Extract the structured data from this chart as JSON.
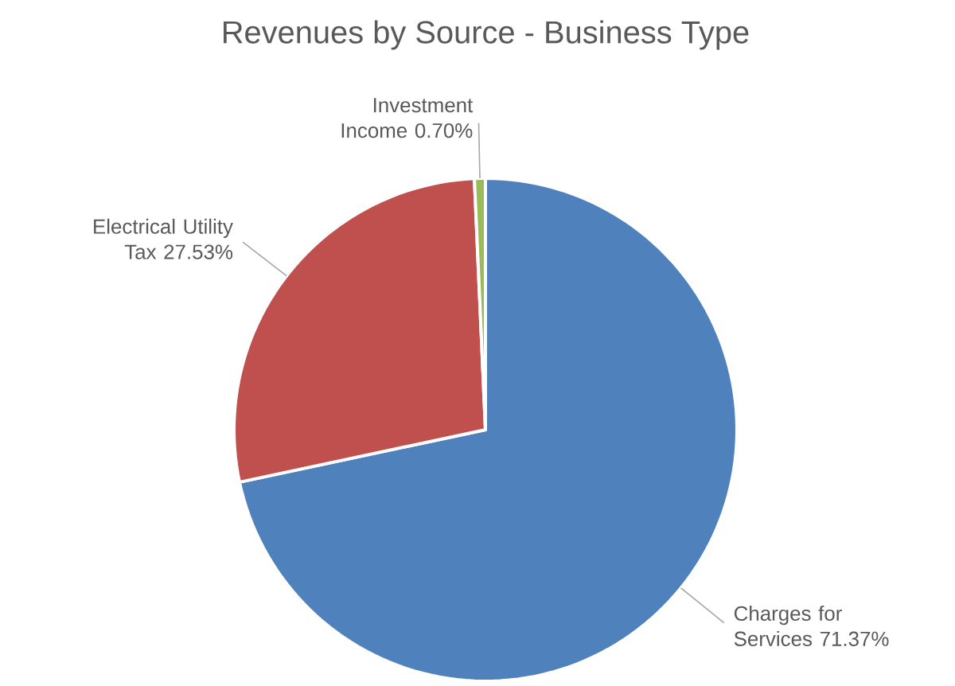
{
  "chart_data": {
    "type": "pie",
    "title": "Revenues by Source - Business Type",
    "categories": [
      "Charges for Services",
      "Electrical Utility Tax",
      "Investment Income"
    ],
    "values": [
      71.37,
      27.53,
      0.7
    ],
    "colors": [
      "#4f81bd",
      "#c0504d",
      "#9bbb59"
    ],
    "value_labels": [
      "71.37%",
      "27.53%",
      "0.70%"
    ]
  }
}
